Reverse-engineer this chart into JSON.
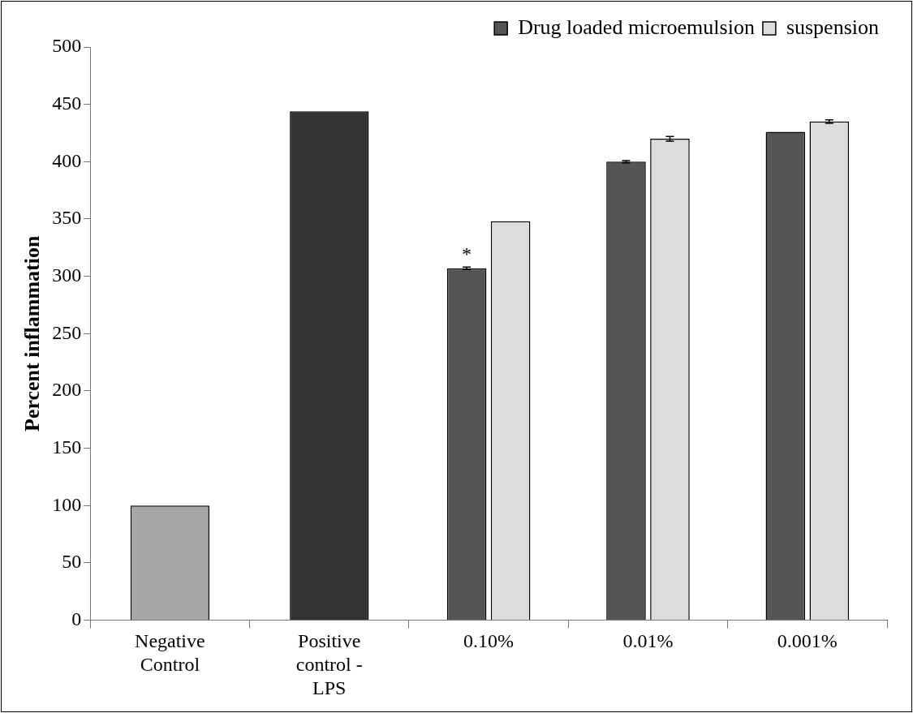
{
  "chart_data": {
    "type": "bar",
    "ylabel": "Percent inflammation",
    "categories": [
      "Negative Control",
      "Positive control - LPS",
      "0.10%",
      "0.01%",
      "0.001%"
    ],
    "series": [
      {
        "name": "Drug loaded microemulsion",
        "color": "#555555",
        "values": [
          null,
          null,
          307,
          400,
          426
        ],
        "errors": [
          null,
          null,
          1,
          1,
          null
        ]
      },
      {
        "name": "suspension",
        "color": "#dcdcdc",
        "values": [
          null,
          null,
          348,
          420,
          435
        ],
        "errors": [
          null,
          null,
          null,
          2,
          1.5
        ]
      },
      {
        "colors": [
          "#a6a6a6",
          "#333333",
          null,
          null,
          null
        ],
        "values": [
          100,
          444,
          null,
          null,
          null
        ]
      }
    ],
    "ylim": [
      0,
      500
    ],
    "yticks": [
      0,
      50,
      100,
      150,
      200,
      250,
      300,
      350,
      400,
      450,
      500
    ],
    "grid": false,
    "legend": "top",
    "annotations": [
      {
        "text": "*",
        "x": "0.10%",
        "y": 307
      }
    ]
  }
}
